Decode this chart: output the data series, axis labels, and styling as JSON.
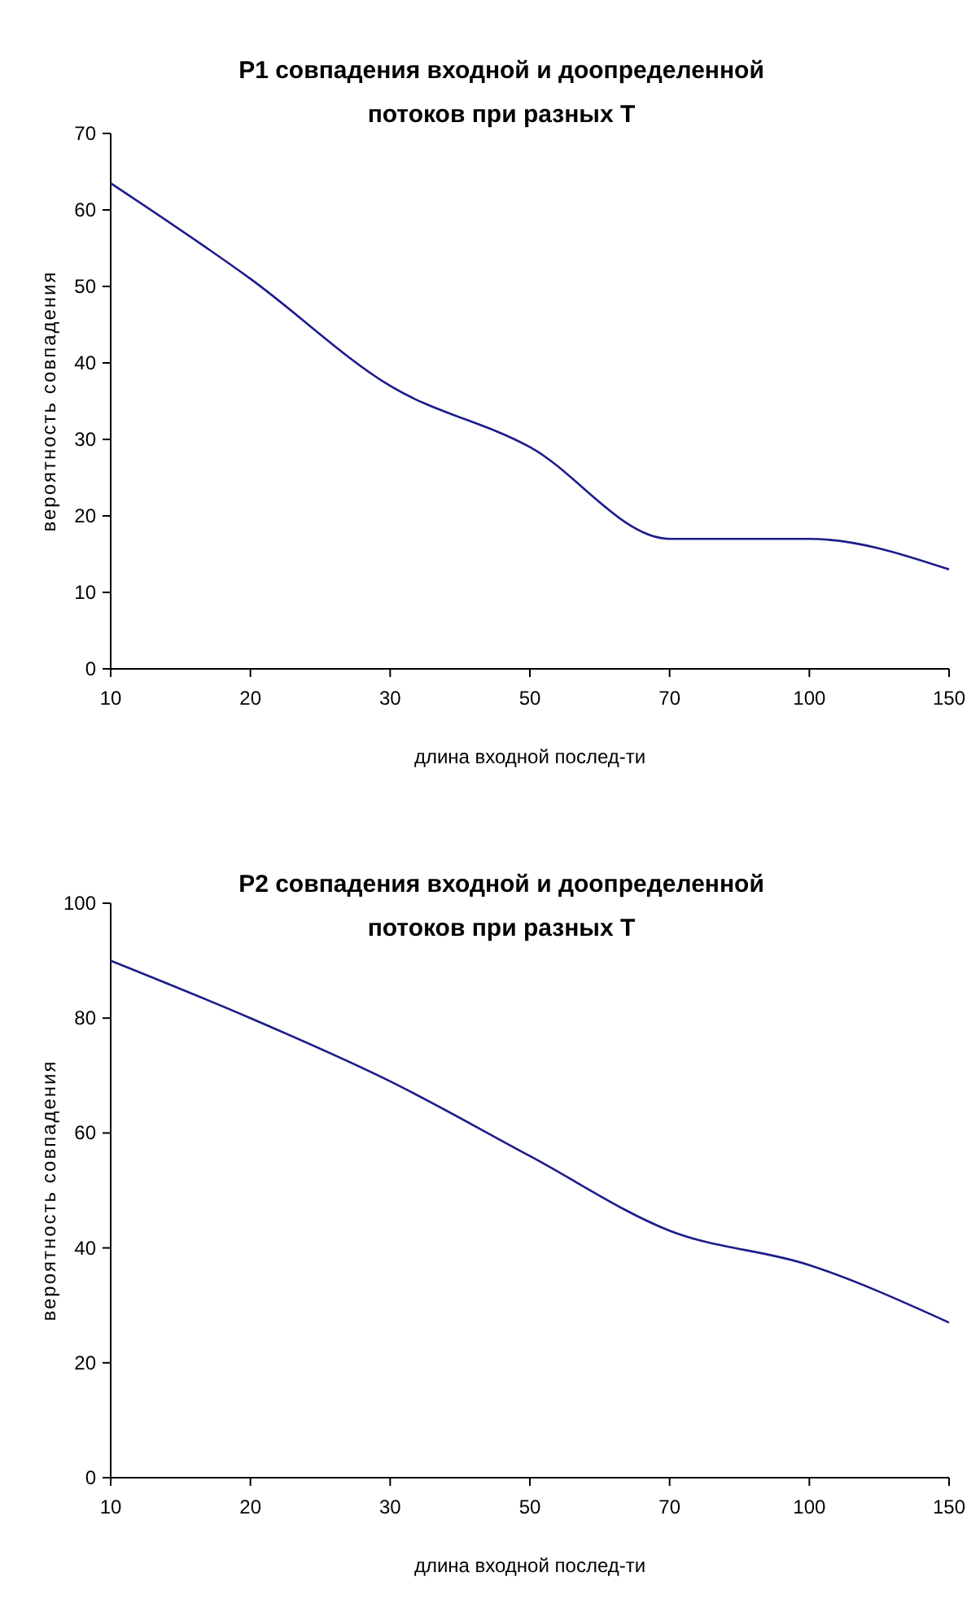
{
  "chart_data": [
    {
      "type": "line",
      "title": "P1 совпадения входной и доопределенной\nпотоков при разных T",
      "xlabel": "длина входной послед-ти",
      "ylabel": "вероятность совпадения",
      "categories": [
        "10",
        "20",
        "30",
        "50",
        "70",
        "100",
        "150"
      ],
      "series": [
        {
          "color": "#1c1c8c",
          "values": [
            63.5,
            51,
            37,
            29,
            17,
            17,
            13
          ]
        }
      ],
      "ylim": [
        0,
        70
      ],
      "yticks": [
        0,
        10,
        20,
        30,
        40,
        50,
        60,
        70
      ],
      "grid": false
    },
    {
      "type": "line",
      "title": "P2 совпадения входной и доопределенной\nпотоков при разных T",
      "xlabel": "длина входной послед-ти",
      "ylabel": "вероятность совпадения",
      "categories": [
        "10",
        "20",
        "30",
        "50",
        "70",
        "100",
        "150"
      ],
      "series": [
        {
          "color": "#1c1c8c",
          "values": [
            90,
            80,
            69,
            56,
            43,
            37,
            27
          ]
        }
      ],
      "ylim": [
        0,
        100
      ],
      "yticks": [
        0,
        20,
        40,
        60,
        80,
        100
      ],
      "grid": false
    }
  ]
}
